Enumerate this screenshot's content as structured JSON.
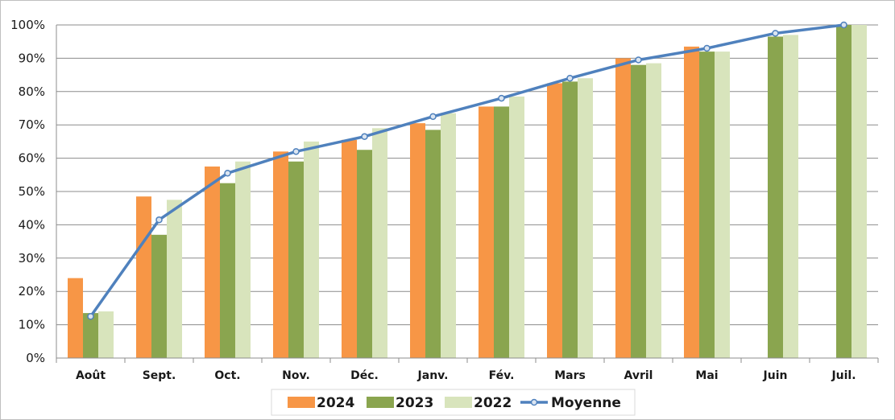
{
  "chart_data": {
    "type": "bar",
    "categories": [
      "Août",
      "Sept.",
      "Oct.",
      "Nov.",
      "Déc.",
      "Janv.",
      "Fév.",
      "Mars",
      "Avril",
      "Mai",
      "Juin",
      "Juil."
    ],
    "series": [
      {
        "name": "2024",
        "type": "bar",
        "color": "#f79646",
        "values": [
          24,
          48.5,
          57.5,
          62,
          65.5,
          70.5,
          75.5,
          82.5,
          90,
          93.5,
          null,
          null
        ]
      },
      {
        "name": "2023",
        "type": "bar",
        "color": "#8aa54f",
        "values": [
          13.5,
          37,
          52.5,
          59,
          62.5,
          68.5,
          75.5,
          83,
          88,
          92,
          96.5,
          100
        ]
      },
      {
        "name": "2022",
        "type": "bar",
        "color": "#d8e4bc",
        "values": [
          14,
          47.5,
          59,
          65,
          69,
          73.5,
          78.5,
          84,
          88.5,
          92,
          97,
          100
        ]
      },
      {
        "name": "Moyenne",
        "type": "line",
        "color": "#4f81bd",
        "values": [
          12.5,
          41.5,
          55.5,
          62,
          66.5,
          72.5,
          78,
          84,
          89.5,
          93,
          97.5,
          100
        ]
      }
    ],
    "y_ticks": [
      "0%",
      "10%",
      "20%",
      "30%",
      "40%",
      "50%",
      "60%",
      "70%",
      "80%",
      "90%",
      "100%"
    ],
    "ylim": [
      0,
      100
    ],
    "grid": true,
    "legend_position": "bottom",
    "title": "",
    "xlabel": "",
    "ylabel": ""
  }
}
